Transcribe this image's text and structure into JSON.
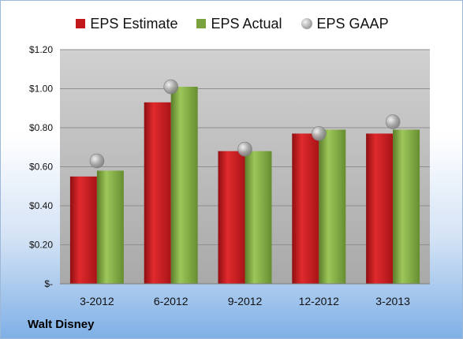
{
  "chart_data": {
    "type": "bar",
    "categories": [
      "3-2012",
      "6-2012",
      "9-2012",
      "12-2012",
      "3-2013"
    ],
    "series": [
      {
        "name": "EPS Estimate",
        "values": [
          0.55,
          0.93,
          0.68,
          0.77,
          0.77
        ],
        "color": "#c0181b"
      },
      {
        "name": "EPS Actual",
        "values": [
          0.58,
          1.01,
          0.68,
          0.79,
          0.79
        ],
        "color": "#7aa33f"
      },
      {
        "name": "EPS GAAP",
        "values": [
          0.63,
          1.01,
          0.69,
          0.77,
          0.83
        ],
        "color": "#a6a6a6",
        "marker": "circle"
      }
    ],
    "y_ticks": [
      "$-",
      "$0.20",
      "$0.40",
      "$0.60",
      "$0.80",
      "$1.00",
      "$1.20"
    ],
    "ylim": [
      0,
      1.2
    ],
    "grid": true,
    "legend_position": "top"
  },
  "company": "Walt Disney"
}
